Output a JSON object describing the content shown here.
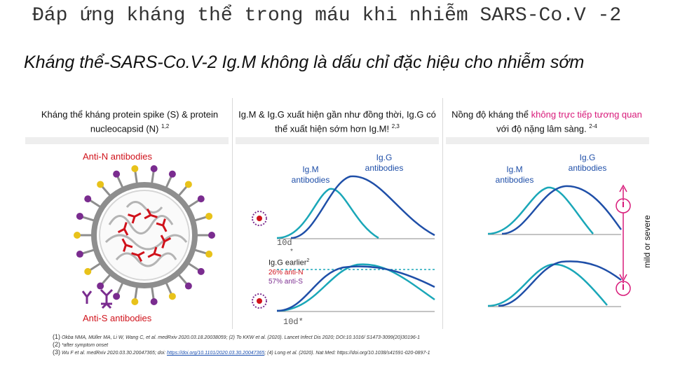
{
  "title": "Đáp ứng kháng thể trong máu khi nhiễm SARS-Co.V -2",
  "subtitle": "Kháng thể-SARS-Co.V-2 Ig.M không là dấu chỉ đặc hiệu cho nhiễm sớm",
  "columns": [
    {
      "text": "Kháng thể kháng protein spike (S) & protein nucleocapsid (N)",
      "sup": "1,2"
    },
    {
      "text": "Ig.M & Ig.G xuất hiện gần như đồng thời, Ig.G có thể xuất hiện sớm hơn Ig.M!",
      "sup": "2,3"
    },
    {
      "text_pre": "Nồng độ kháng thể",
      "text_highlight": "không trực tiếp tương quan",
      "text_post": "với độ nặng lâm sàng.",
      "sup": "2-4"
    }
  ],
  "virus_panel": {
    "anti_n_label": "Anti-N antibodies",
    "anti_s_label": "Anti-S antibodies"
  },
  "timing_panel": {
    "igm_label": "Ig.M antibodies",
    "igg_label": "Ig.G antibodies",
    "day_label_1": "10d",
    "day_star_1": "*",
    "igg_earlier_label": "Ig.G earlier",
    "igg_earlier_sup": "2",
    "anti_n_pct": "26% anti-N",
    "anti_s_pct": "57% anti-S",
    "day_label_2": "10d*"
  },
  "severity_panel": {
    "igm_label": "Ig.M antibodies",
    "igg_label": "Ig.G antibodies",
    "axis_label": "mild or severe",
    "info_glyph": "i"
  },
  "references": [
    {
      "num": "(1)",
      "text": "Okba NMA, Müller MA, Li W, Wang C, et al. medRxiv 2020.03.18.20038059; (2) To KKW et al. (2020). Lancet Infect Dis 2020; DOI:10.1016/ S1473-3099(20)30196-1"
    },
    {
      "num": "(2)",
      "text": "*after symptom onset"
    },
    {
      "num": "(3)",
      "text_pre": "Wu F et al. medRxiv 2020.03.30.20047365; doi: ",
      "link": "https://doi.org/10.1101/2020.03.30.20047365",
      "text_post": "; (4) Long et al. (2020). Nat Med: https://doi.org/10.1038/s41591-020-0897-1"
    }
  ],
  "colors": {
    "igm_curve": "#1aa7b8",
    "igg_curve": "#1f4fa8",
    "antibody_n": "#d0121b",
    "antibody_s": "#7a2c8f",
    "virus_ring": "#8e8e8e",
    "highlight": "#d81b7a"
  }
}
